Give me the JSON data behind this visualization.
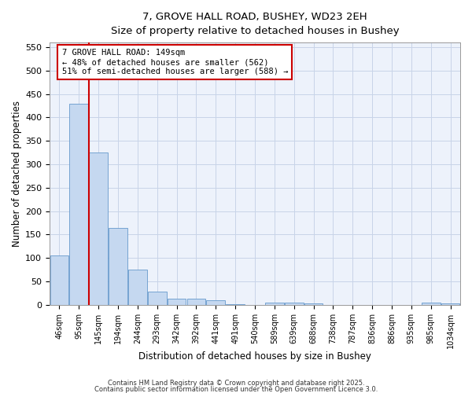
{
  "title1": "7, GROVE HALL ROAD, BUSHEY, WD23 2EH",
  "title2": "Size of property relative to detached houses in Bushey",
  "xlabel": "Distribution of detached houses by size in Bushey",
  "ylabel": "Number of detached properties",
  "bin_labels": [
    "46sqm",
    "95sqm",
    "145sqm",
    "194sqm",
    "244sqm",
    "293sqm",
    "342sqm",
    "392sqm",
    "441sqm",
    "491sqm",
    "540sqm",
    "589sqm",
    "639sqm",
    "688sqm",
    "738sqm",
    "787sqm",
    "836sqm",
    "886sqm",
    "935sqm",
    "985sqm",
    "1034sqm"
  ],
  "bar_values": [
    105,
    430,
    325,
    165,
    75,
    28,
    13,
    13,
    9,
    1,
    0,
    5,
    5,
    3,
    0,
    0,
    0,
    0,
    0,
    4,
    3
  ],
  "bar_color": "#c5d8f0",
  "bar_edge_color": "#6699cc",
  "vline_color": "#cc0000",
  "ylim": [
    0,
    560
  ],
  "yticks": [
    0,
    50,
    100,
    150,
    200,
    250,
    300,
    350,
    400,
    450,
    500,
    550
  ],
  "annotation_text": "7 GROVE HALL ROAD: 149sqm\n← 48% of detached houses are smaller (562)\n51% of semi-detached houses are larger (588) →",
  "annotation_box_color": "#cc0000",
  "footer_text1": "Contains HM Land Registry data © Crown copyright and database right 2025.",
  "footer_text2": "Contains public sector information licensed under the Open Government Licence 3.0.",
  "bg_color": "#edf2fb",
  "plot_bg_color": "#ffffff",
  "grid_color": "#c8d4e8"
}
